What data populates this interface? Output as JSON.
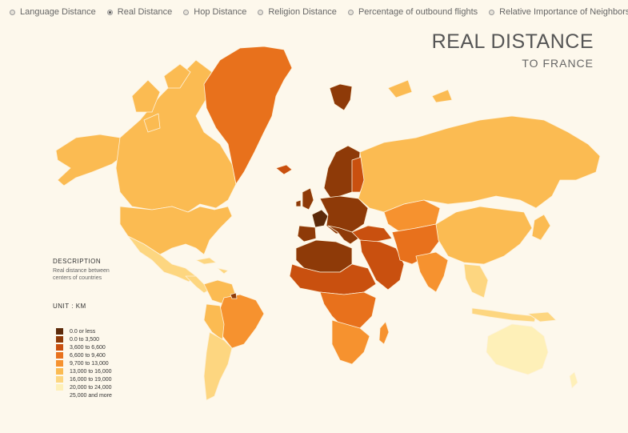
{
  "options": [
    {
      "label": "Language Distance",
      "selected": false
    },
    {
      "label": "Real Distance",
      "selected": true
    },
    {
      "label": "Hop Distance",
      "selected": false
    },
    {
      "label": "Religion Distance",
      "selected": false
    },
    {
      "label": "Percentage of outbound flights",
      "selected": false
    },
    {
      "label": "Relative Importance of Neighbors",
      "selected": false
    }
  ],
  "title": {
    "main": "REAL DISTANCE",
    "sub": "TO FRANCE"
  },
  "description": {
    "heading": "DESCRIPTION",
    "text": "Real distance between centers of countries"
  },
  "unit": "UNIT : KM",
  "legend": [
    {
      "label": "0.0 or less",
      "color": "#5c2a0a"
    },
    {
      "label": "0.0 to 3,500",
      "color": "#8e3a08"
    },
    {
      "label": "3,600 to 6,600",
      "color": "#c9500f"
    },
    {
      "label": "6,600 to 9,400",
      "color": "#e8711c"
    },
    {
      "label": "9,700 to 13,000",
      "color": "#f6922f"
    },
    {
      "label": "13,000 to 16,000",
      "color": "#fbbb52"
    },
    {
      "label": "16,000 to 19,000",
      "color": "#fdd680"
    },
    {
      "label": "20,000 to 24,000",
      "color": "#fef0b8"
    },
    {
      "label": "25,000 and more",
      "color": "#fdf8ec"
    }
  ]
}
